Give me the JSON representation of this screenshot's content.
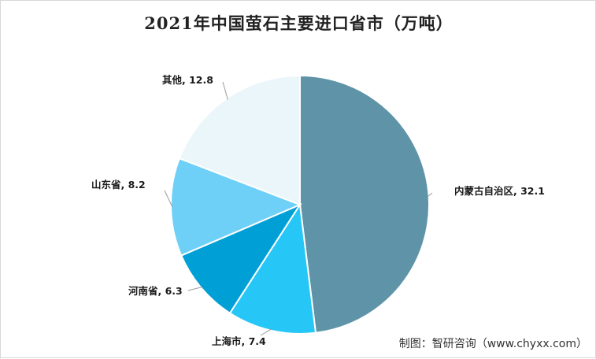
{
  "chart_data": {
    "type": "pie",
    "title": "2021年中国萤石主要进口省市（万吨）",
    "slices": [
      {
        "label": "内蒙古自治区",
        "value": 32.1,
        "color": "#5e93a8"
      },
      {
        "label": "上海市",
        "value": 7.4,
        "color": "#26c6f7"
      },
      {
        "label": "河南省",
        "value": 6.3,
        "color": "#00a0d6"
      },
      {
        "label": "山东省",
        "value": 8.2,
        "color": "#6fd0f7"
      },
      {
        "label": "其他",
        "value": 12.8,
        "color": "#eaf6fa"
      }
    ],
    "start": "12 o'clock",
    "direction": "clockwise"
  },
  "footer": {
    "source": "制图：智研咨询（www.chyxx.com）"
  }
}
